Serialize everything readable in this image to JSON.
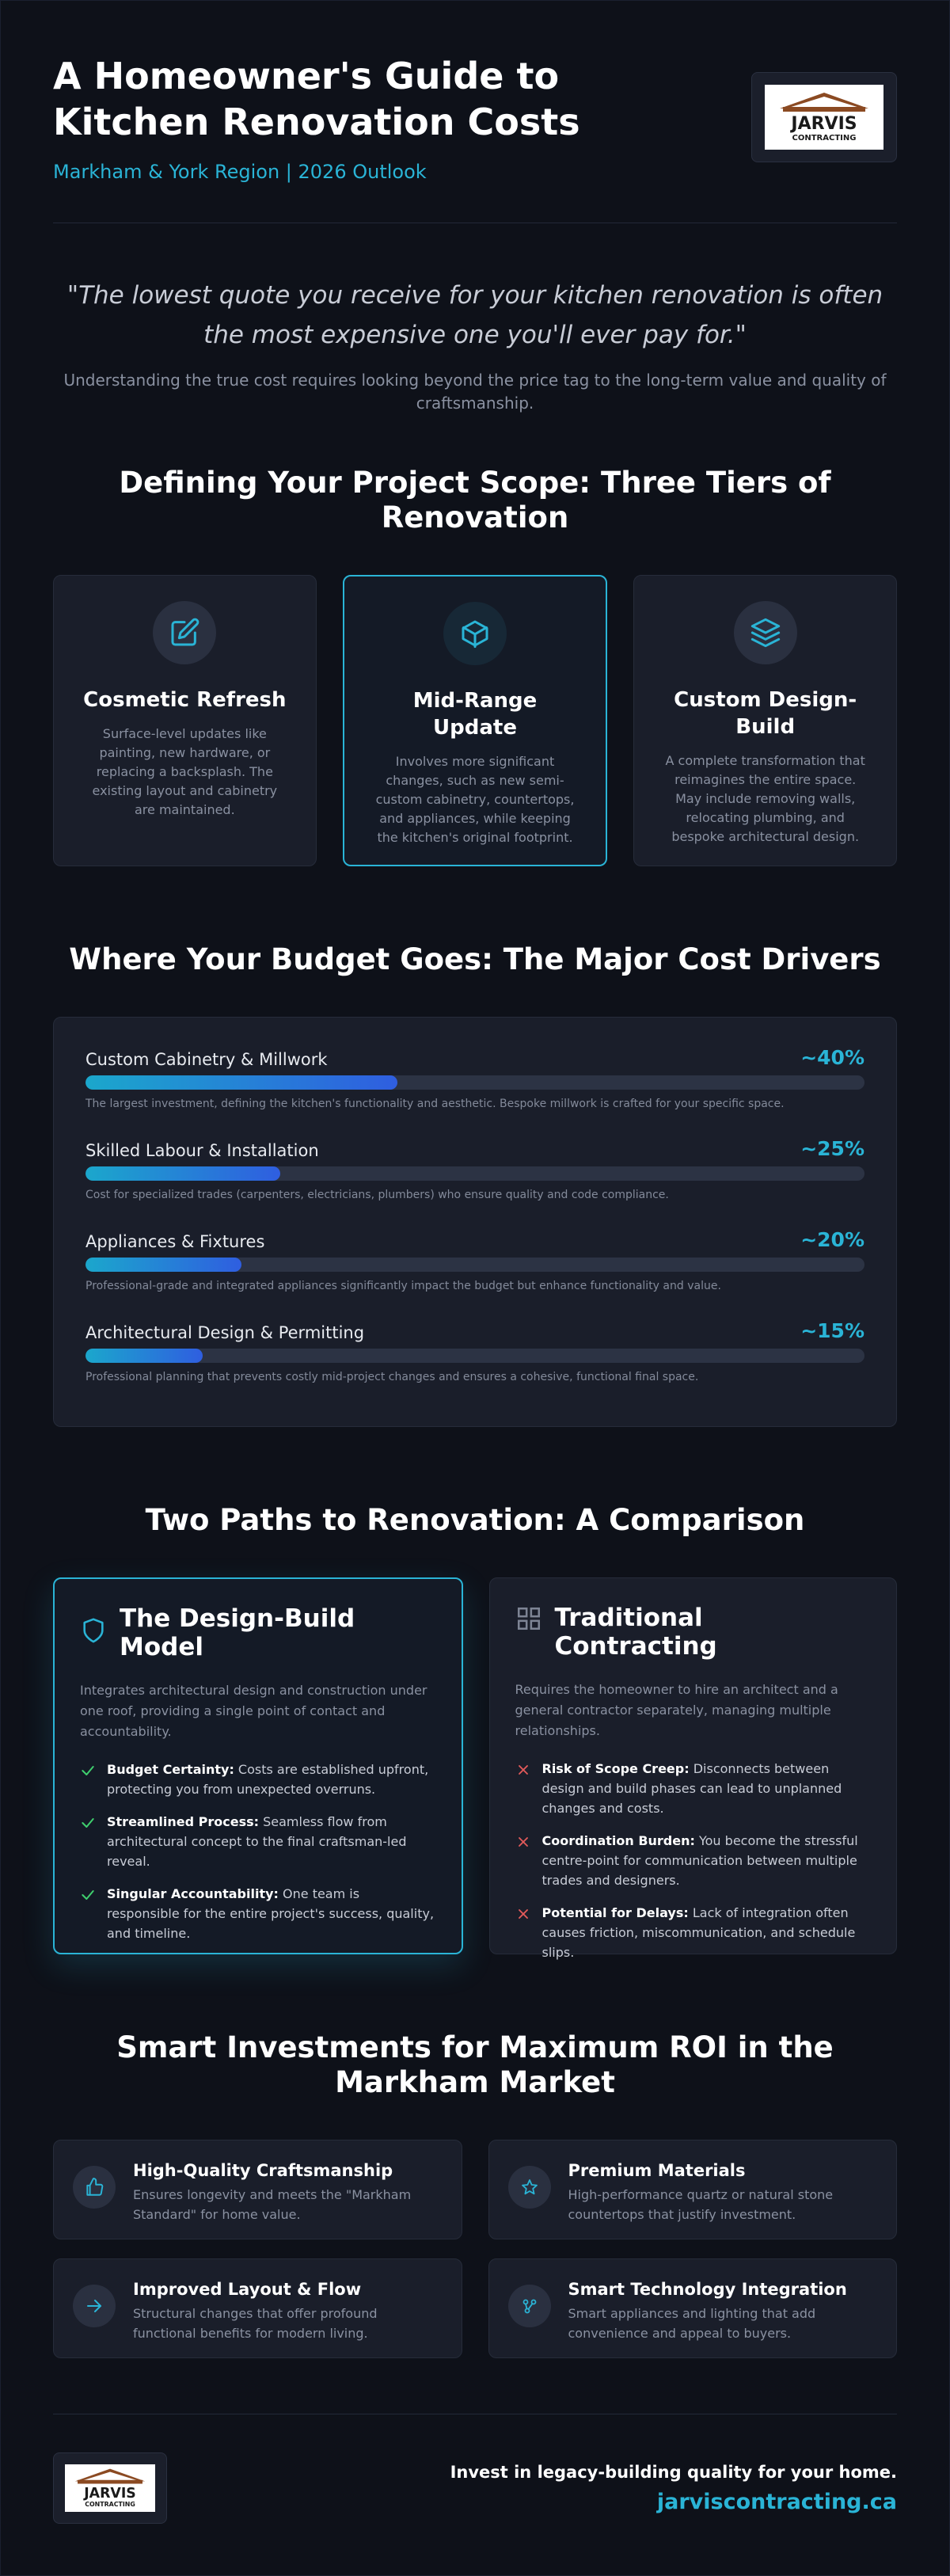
{
  "header": {
    "title": "A Homeowner's Guide to Kitchen Renovation Costs",
    "subtitle": "Markham & York Region | 2026 Outlook",
    "logo": {
      "text_top": "JARVIS",
      "text_bottom": "CONTRACTING",
      "colors": {
        "roof": "#8b4a22",
        "text": "#1a1a1a"
      }
    }
  },
  "quote": {
    "text": "\"The lowest quote you receive for your kitchen renovation is often the most expensive one you'll ever pay for.\"",
    "note": "Understanding the true cost requires looking beyond the price tag to the long-term value and quality of craftsmanship."
  },
  "tiers": {
    "title": "Defining Your Project Scope: Three Tiers of Renovation",
    "items": [
      {
        "icon": "edit-icon",
        "title": "Cosmetic Refresh",
        "desc": "Surface-level updates like painting, new hardware, or replacing a backsplash. The existing layout and cabinetry are maintained."
      },
      {
        "icon": "cube-icon",
        "title": "Mid-Range Update",
        "desc": "Involves more significant changes, such as new semi-custom cabinetry, countertops, and appliances, while keeping the kitchen's original footprint."
      },
      {
        "icon": "layers-icon",
        "title": "Custom Design-Build",
        "desc": "A complete transformation that reimagines the entire space. May include removing walls, relocating plumbing, and bespoke architectural design."
      }
    ]
  },
  "drivers": {
    "title": "Where Your Budget Goes: The Major Cost Drivers",
    "items": [
      {
        "label": "Custom Cabinetry & Millwork",
        "pct": "~40%",
        "value": 40,
        "desc": "The largest investment, defining the kitchen's functionality and aesthetic. Bespoke millwork is crafted for your specific space."
      },
      {
        "label": "Skilled Labour & Installation",
        "pct": "~25%",
        "value": 25,
        "desc": "Cost for specialized trades (carpenters, electricians, plumbers) who ensure quality and code compliance."
      },
      {
        "label": "Appliances & Fixtures",
        "pct": "~20%",
        "value": 20,
        "desc": "Professional-grade and integrated appliances significantly impact the budget but enhance functionality and value."
      },
      {
        "label": "Architectural Design & Permitting",
        "pct": "~15%",
        "value": 15,
        "desc": "Professional planning that prevents costly mid-project changes and ensures a cohesive, functional final space."
      }
    ]
  },
  "compare": {
    "title": "Two Paths to Renovation: A Comparison",
    "design_build": {
      "title": "The Design-Build Model",
      "intro": "Integrates architectural design and construction under one roof, providing a single point of contact and accountability.",
      "points": [
        {
          "bold": "Budget Certainty:",
          "text": " Costs are established upfront, protecting you from unexpected overruns."
        },
        {
          "bold": "Streamlined Process:",
          "text": " Seamless flow from architectural concept to the final craftsman-led reveal."
        },
        {
          "bold": "Singular Accountability:",
          "text": " One team is responsible for the entire project's success, quality, and timeline."
        }
      ]
    },
    "traditional": {
      "title": "Traditional Contracting",
      "intro": "Requires the homeowner to hire an architect and a general contractor separately, managing multiple relationships.",
      "points": [
        {
          "bold": "Risk of Scope Creep:",
          "text": " Disconnects between design and build phases can lead to unplanned changes and costs."
        },
        {
          "bold": "Coordination Burden:",
          "text": " You become the stressful centre-point for communication between multiple trades and designers."
        },
        {
          "bold": "Potential for Delays:",
          "text": " Lack of integration often causes friction, miscommunication, and schedule slips."
        }
      ]
    }
  },
  "roi": {
    "title": "Smart Investments for Maximum ROI in the Markham Market",
    "items": [
      {
        "icon": "thumbs-up-icon",
        "title": "High-Quality Craftsmanship",
        "desc": "Ensures longevity and meets the \"Markham Standard\" for home value."
      },
      {
        "icon": "star-icon",
        "title": "Premium Materials",
        "desc": "High-performance quartz or natural stone countertops that justify investment."
      },
      {
        "icon": "arrow-right-icon",
        "title": "Improved Layout & Flow",
        "desc": "Structural changes that offer profound functional benefits for modern living."
      },
      {
        "icon": "share-icon",
        "title": "Smart Technology Integration",
        "desc": "Smart appliances and lighting that add convenience and appeal to buyers."
      }
    ]
  },
  "footer": {
    "tagline": "Invest in legacy-building quality for your home.",
    "url": "jarviscontracting.ca"
  },
  "colors": {
    "accent": "#2ab4d6",
    "background": "#0e1119",
    "card": "#1a1e2a",
    "check": "#3fcf6e",
    "cross": "#e35a5a"
  }
}
